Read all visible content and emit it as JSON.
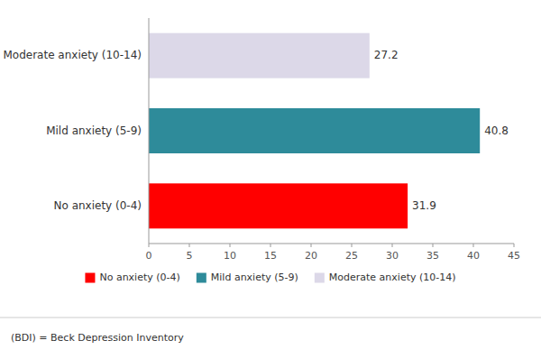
{
  "chart_data": {
    "type": "bar",
    "orientation": "horizontal",
    "categories": [
      "No anxiety (0-4)",
      "Mild anxiety (5-9)",
      "Moderate anxiety (10-14)"
    ],
    "values": [
      31.9,
      40.8,
      27.2
    ],
    "colors": [
      "#ff0000",
      "#2e8b9a",
      "#dcd8e8"
    ],
    "xlim": [
      0,
      45
    ],
    "xticks": [
      0,
      5,
      10,
      15,
      20,
      25,
      30,
      35,
      40,
      45
    ],
    "data_labels": true,
    "grid": false,
    "legend": "bottom",
    "footnote": "(BDI) = Beck Depression Inventory"
  }
}
